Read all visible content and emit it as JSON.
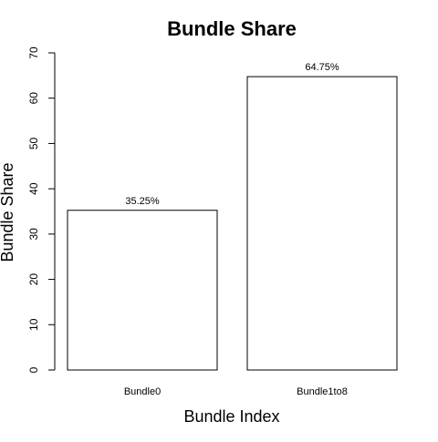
{
  "chart_data": {
    "type": "bar",
    "title": "Bundle Share",
    "xlabel": "Bundle Index",
    "ylabel": "Bundle Share",
    "categories": [
      "Bundle0",
      "Bundle1to8"
    ],
    "values": [
      35.25,
      64.75
    ],
    "data_labels": [
      "35.25%",
      "64.75%"
    ],
    "ylim": [
      0,
      70
    ],
    "yticks": [
      0,
      10,
      20,
      30,
      40,
      50,
      60,
      70
    ],
    "grid": false,
    "bar_fill": "#ffffff",
    "bar_stroke": "#000000"
  }
}
